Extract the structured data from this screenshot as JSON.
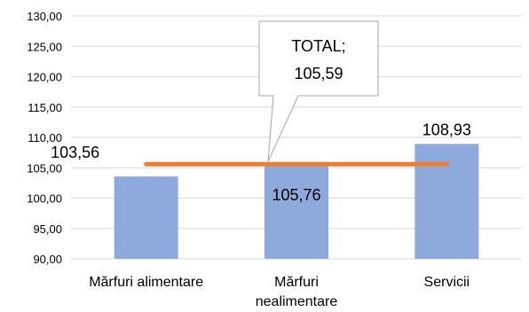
{
  "chart_data": {
    "type": "bar",
    "categories": [
      [
        "Mărfuri alimentare"
      ],
      [
        "Mărfuri",
        "nealimentare"
      ],
      [
        "Servicii"
      ]
    ],
    "series": [
      {
        "values": [
          103.56,
          105.76,
          108.93
        ],
        "labels": [
          "103,56",
          "105,76",
          "108,93"
        ]
      }
    ],
    "reference_line": {
      "value": 105.59,
      "callout": [
        "TOTAL;",
        "105,59"
      ]
    },
    "ylim": [
      90,
      130
    ],
    "y_ticks": [
      90,
      95,
      100,
      105,
      110,
      115,
      120,
      125,
      130
    ],
    "y_tick_labels": [
      "90,00",
      "95,00",
      "100,00",
      "105,00",
      "110,00",
      "115,00",
      "120,00",
      "125,00",
      "130,00"
    ],
    "grid": true,
    "legend": "none",
    "colors": {
      "bar": "#8EA9DB",
      "reference_line": "#ED7D31",
      "grid": "#D9D9D9",
      "callout_border": "#A6A6A6"
    }
  }
}
